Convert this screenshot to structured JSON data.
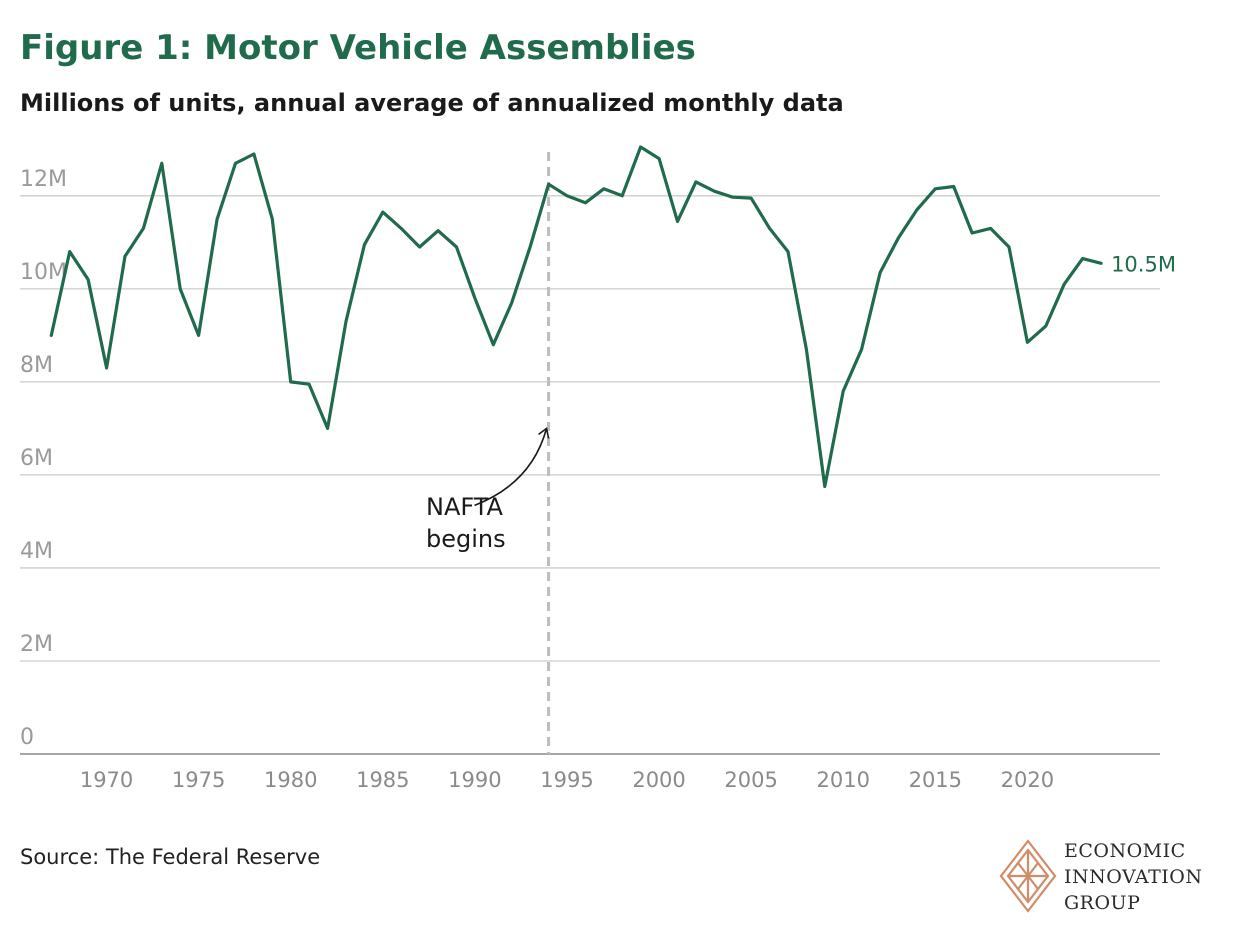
{
  "header": {
    "title": "Figure 1: Motor Vehicle Assemblies",
    "subtitle": "Millions of units, annual average of annualized monthly data"
  },
  "footer": {
    "source": "Source: The Federal Reserve"
  },
  "logo": {
    "lines": [
      "ECONOMIC",
      "INNOVATION",
      "GROUP"
    ],
    "color": "#d08c68"
  },
  "colors": {
    "line": "#1f6b4c",
    "title": "#1f6b4c",
    "grid": "#cccccc",
    "tick_label": "#9a9a9a",
    "nafta_line": "#bdbdbd"
  },
  "chart_data": {
    "type": "line",
    "title": "Figure 1: Motor Vehicle Assemblies",
    "subtitle": "Millions of units, annual average of annualized monthly data",
    "xlabel": "",
    "ylabel": "",
    "x": [
      1967,
      1968,
      1969,
      1970,
      1971,
      1972,
      1973,
      1974,
      1975,
      1976,
      1977,
      1978,
      1979,
      1980,
      1981,
      1982,
      1983,
      1984,
      1985,
      1986,
      1987,
      1988,
      1989,
      1990,
      1991,
      1992,
      1993,
      1994,
      1995,
      1996,
      1997,
      1998,
      1999,
      2000,
      2001,
      2002,
      2003,
      2004,
      2005,
      2006,
      2007,
      2008,
      2009,
      2010,
      2011,
      2012,
      2013,
      2014,
      2015,
      2016,
      2017,
      2018,
      2019,
      2020,
      2021,
      2022,
      2023,
      2024
    ],
    "values": [
      9.0,
      10.8,
      10.2,
      8.3,
      10.7,
      11.3,
      12.7,
      10.0,
      9.0,
      11.5,
      12.7,
      12.9,
      11.5,
      8.0,
      7.95,
      7.0,
      9.3,
      10.95,
      11.65,
      11.3,
      10.9,
      11.25,
      10.9,
      9.8,
      8.8,
      9.7,
      10.9,
      12.25,
      12.0,
      11.85,
      12.15,
      12.0,
      13.05,
      12.8,
      11.45,
      12.3,
      12.1,
      11.97,
      11.95,
      11.3,
      10.8,
      8.7,
      5.75,
      7.8,
      8.7,
      10.35,
      11.1,
      11.7,
      12.15,
      12.2,
      11.2,
      11.3,
      10.9,
      8.85,
      9.2,
      10.1,
      10.65,
      10.55
    ],
    "yticks": [
      0,
      2,
      4,
      6,
      8,
      10,
      12
    ],
    "ytick_labels": [
      "0",
      "2M",
      "4M",
      "6M",
      "8M",
      "10M",
      "12M"
    ],
    "xticks": [
      1970,
      1975,
      1980,
      1985,
      1990,
      1995,
      2000,
      2005,
      2010,
      2015,
      2020
    ],
    "xtick_labels": [
      "1970",
      "1975",
      "1980",
      "1985",
      "1990",
      "1995",
      "2000",
      "2005",
      "2010",
      "2015",
      "2020"
    ],
    "ylim": [
      0,
      13.2
    ],
    "xlim": [
      1965.3,
      2027.2
    ],
    "grid": true,
    "end_label": "10.5M",
    "annotation": {
      "lines": [
        "NAFTA",
        "begins"
      ],
      "x": 1994,
      "arrow_to_y": 7.0
    }
  }
}
